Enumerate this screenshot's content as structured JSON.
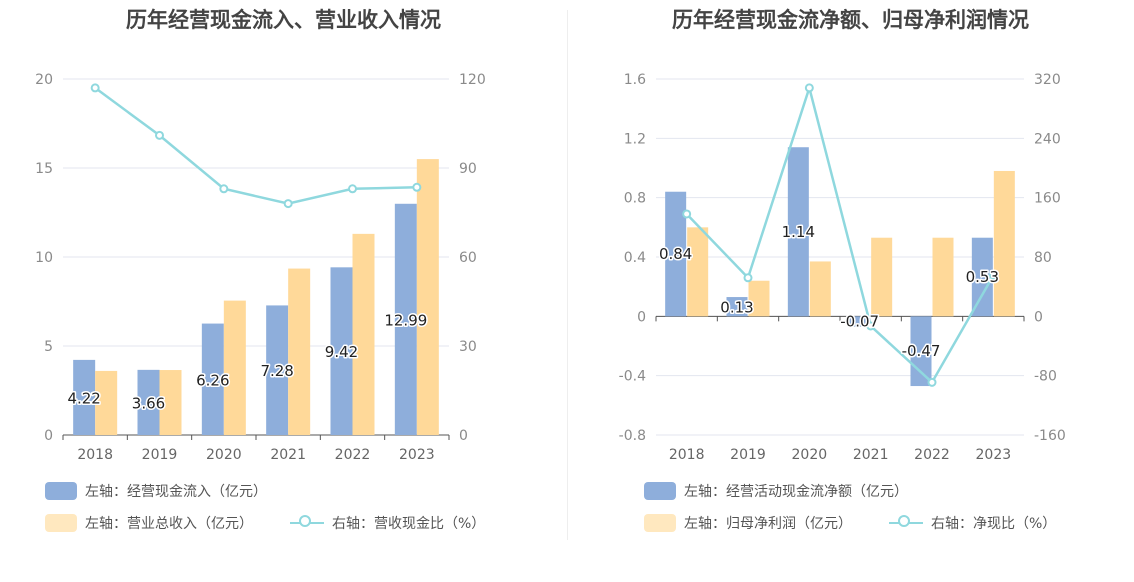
{
  "charts": {
    "left": {
      "title": "历年经营现金流入、营业收入情况",
      "legend": [
        {
          "label": "左轴：经营现金流入（亿元）",
          "kind": "bar",
          "color": "#8eaedb"
        },
        {
          "label": "左轴：营业总收入（亿元）",
          "kind": "bar",
          "color": "#ffe8bf"
        },
        {
          "label": "右轴：营收现金比（%）",
          "kind": "line",
          "color": "#8fd8de"
        }
      ]
    },
    "right": {
      "title": "历年经营现金流净额、归母净利润情况",
      "legend": [
        {
          "label": "左轴：经营活动现金流净额（亿元）",
          "kind": "bar",
          "color": "#8eaedb"
        },
        {
          "label": "左轴：归母净利润（亿元）",
          "kind": "bar",
          "color": "#ffe8bf"
        },
        {
          "label": "右轴：净现比（%）",
          "kind": "line",
          "color": "#8fd8de"
        }
      ]
    }
  },
  "chart_data": [
    {
      "type": "bar",
      "title": "历年经营现金流入、营业收入情况",
      "categories": [
        "2018",
        "2019",
        "2020",
        "2021",
        "2022",
        "2023"
      ],
      "ylim_left": [
        0,
        20
      ],
      "yticks_left": [
        "0",
        "5",
        "10",
        "15",
        "20"
      ],
      "ylim_right": [
        0,
        120
      ],
      "yticks_right": [
        "0",
        "30",
        "60",
        "90",
        "120"
      ],
      "series": [
        {
          "name": "左轴：经营现金流入（亿元）",
          "type": "bar",
          "axis": "left",
          "color": "#8eaedb",
          "values": [
            4.22,
            3.66,
            6.26,
            7.28,
            9.42,
            12.99
          ],
          "labels": [
            "4.22",
            "3.66",
            "6.26",
            "7.28",
            "9.42",
            "12.99"
          ]
        },
        {
          "name": "左轴：营业总收入（亿元）",
          "type": "bar",
          "axis": "left",
          "color": "#ffd999",
          "values": [
            3.6,
            3.65,
            7.55,
            9.35,
            11.3,
            15.5
          ]
        },
        {
          "name": "右轴：营收现金比（%）",
          "type": "line",
          "axis": "right",
          "color": "#8fd8de",
          "values": [
            117,
            101,
            83,
            78,
            83,
            83.5
          ]
        }
      ]
    },
    {
      "type": "bar",
      "title": "历年经营现金流净额、归母净利润情况",
      "categories": [
        "2018",
        "2019",
        "2020",
        "2021",
        "2022",
        "2023"
      ],
      "ylim_left": [
        -0.8,
        1.6
      ],
      "yticks_left": [
        "-0.8",
        "-0.4",
        "0",
        "0.4",
        "0.8",
        "1.2",
        "1.6"
      ],
      "ylim_right": [
        -160,
        320
      ],
      "yticks_right": [
        "-160",
        "-80",
        "0",
        "80",
        "160",
        "240",
        "320"
      ],
      "series": [
        {
          "name": "左轴：经营活动现金流净额（亿元）",
          "type": "bar",
          "axis": "left",
          "color": "#8eaedb",
          "values": [
            0.84,
            0.13,
            1.14,
            -0.07,
            -0.47,
            0.53
          ],
          "labels": [
            "0.84",
            "0.13",
            "1.14",
            "-0.07",
            "-0.47",
            "0.53"
          ]
        },
        {
          "name": "左轴：归母净利润（亿元）",
          "type": "bar",
          "axis": "left",
          "color": "#ffd999",
          "values": [
            0.6,
            0.24,
            0.37,
            0.53,
            0.53,
            0.98
          ]
        },
        {
          "name": "右轴：净现比（%）",
          "type": "line",
          "axis": "right",
          "color": "#8fd8de",
          "values": [
            138,
            52,
            308,
            -13,
            -89,
            55
          ]
        }
      ]
    }
  ]
}
